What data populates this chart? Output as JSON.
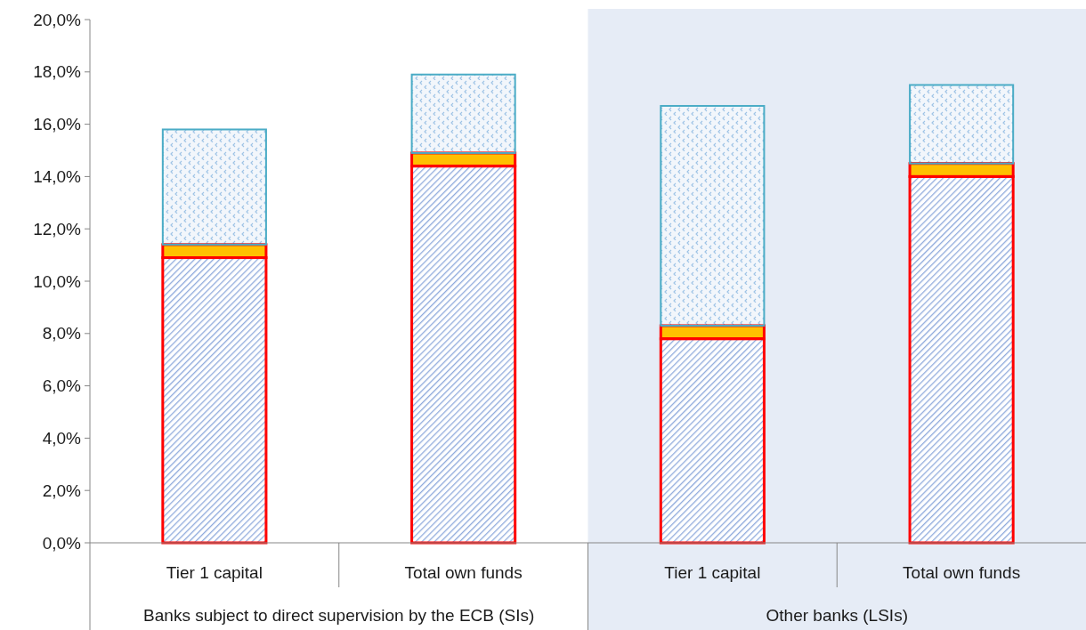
{
  "chart_data": {
    "type": "bar",
    "stacked": true,
    "categories": [
      "Tier 1 capital",
      "Total own funds",
      "Tier 1 capital",
      "Total own funds"
    ],
    "series": [
      {
        "color": "#8faadc",
        "values": [
          10.9,
          14.4,
          7.8,
          14.0
        ]
      },
      {
        "color": "#ffc000",
        "values": [
          0.5,
          0.5,
          0.5,
          0.5
        ]
      },
      {
        "color": "#9dc3e6",
        "values": [
          4.4,
          3.0,
          8.4,
          3.0
        ]
      }
    ],
    "ylim": [
      0,
      20
    ],
    "yticks": [
      {
        "value": 0,
        "label": "0,0%"
      },
      {
        "value": 2,
        "label": "2,0%"
      },
      {
        "value": 4,
        "label": "4,0%"
      },
      {
        "value": 6,
        "label": "6,0%"
      },
      {
        "value": 8,
        "label": "8,0%"
      },
      {
        "value": 10,
        "label": "10,0%"
      },
      {
        "value": 12,
        "label": "12,0%"
      },
      {
        "value": 14,
        "label": "14,0%"
      },
      {
        "value": 16,
        "label": "16,0%"
      },
      {
        "value": 18,
        "label": "18,0%"
      },
      {
        "value": 20,
        "label": "20,0%"
      }
    ],
    "annotations": [
      "Banks subject to direct supervision by the ECB (SIs)",
      "Other banks (LSIs)"
    ],
    "grid": false
  }
}
